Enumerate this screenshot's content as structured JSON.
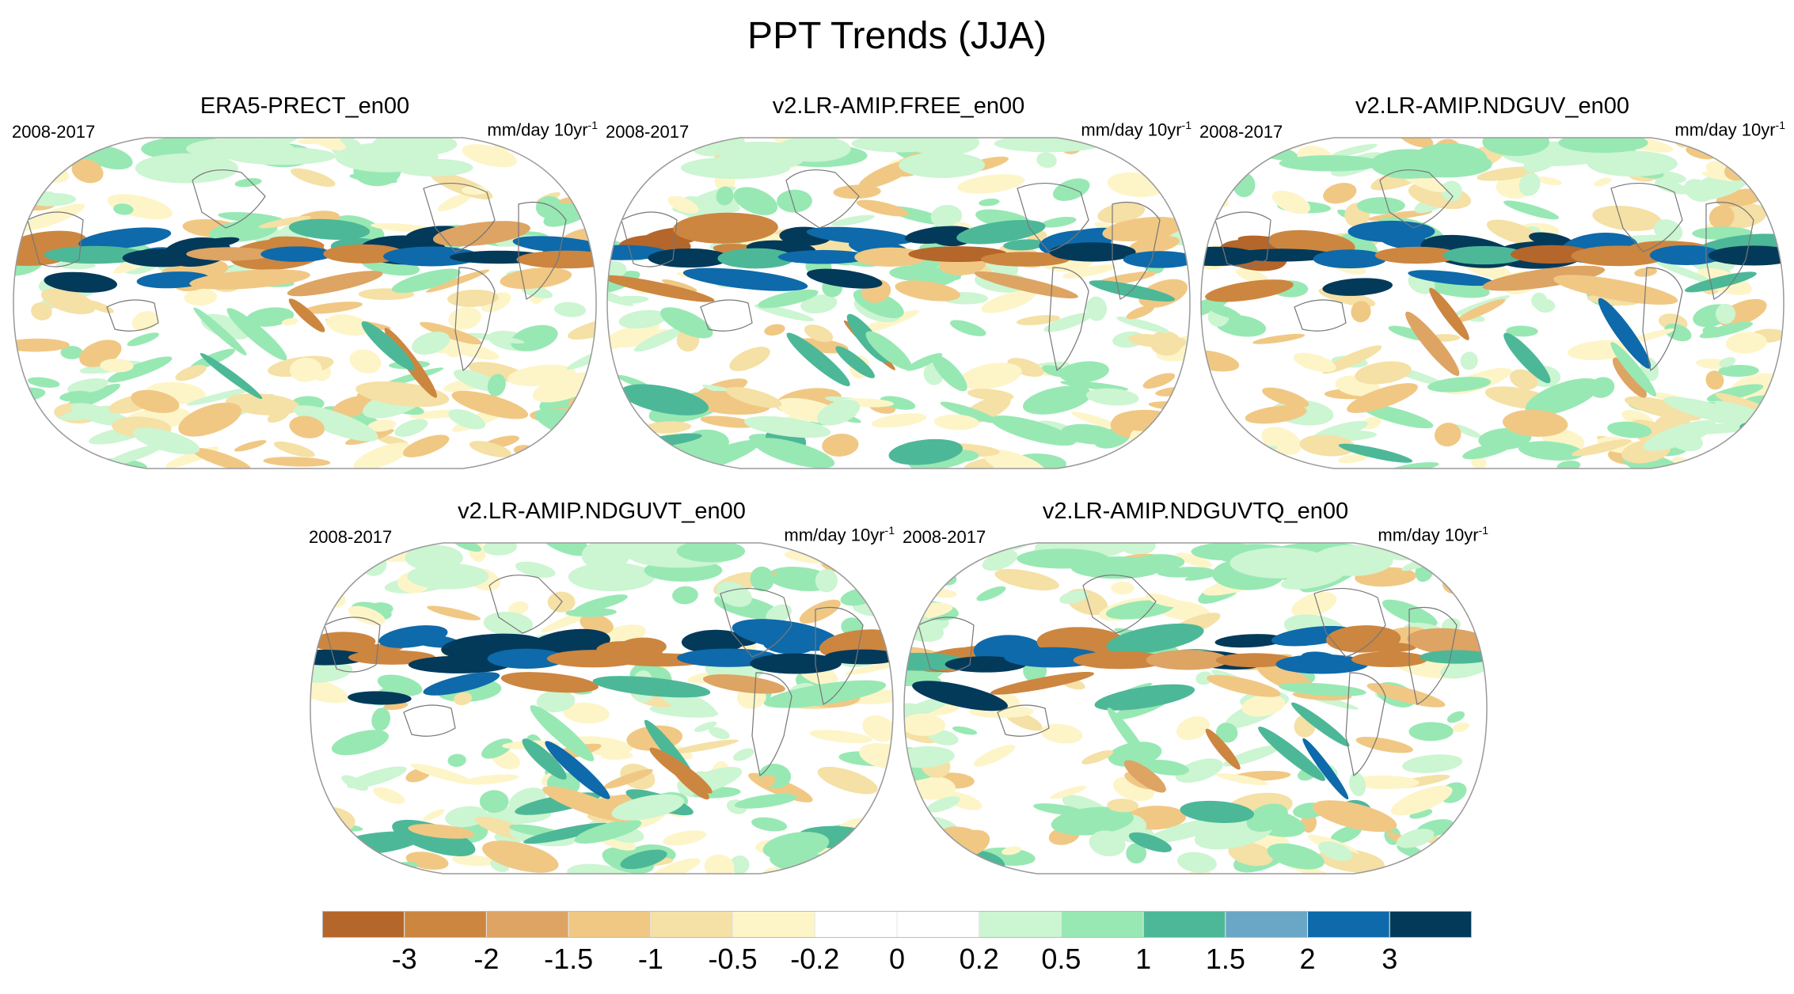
{
  "figure": {
    "title": "PPT Trends (JJA)"
  },
  "panels": [
    {
      "title": "ERA5-PRECT_en00",
      "period": "2008-2017",
      "units": "mm/day 10yr",
      "units_sup": "-1"
    },
    {
      "title": "v2.LR-AMIP.FREE_en00",
      "period": "2008-2017",
      "units": "mm/day 10yr",
      "units_sup": "-1"
    },
    {
      "title": "v2.LR-AMIP.NDGUV_en00",
      "period": "2008-2017",
      "units": "mm/day 10yr",
      "units_sup": "-1"
    },
    {
      "title": "v2.LR-AMIP.NDGUVT_en00",
      "period": "2008-2017",
      "units": "mm/day 10yr",
      "units_sup": "-1"
    },
    {
      "title": "v2.LR-AMIP.NDGUVTQ_en00",
      "period": "2008-2017",
      "units": "mm/day 10yr",
      "units_sup": "-1"
    }
  ],
  "colorbar": {
    "colors": [
      "#b5662a",
      "#cc8640",
      "#dda463",
      "#f0c884",
      "#f5e0a5",
      "#fdf5c8",
      "#ffffff",
      "#ffffff",
      "#ccf5d2",
      "#98e8b4",
      "#4db898",
      "#6aa6c6",
      "#0e6aaa",
      "#033a5a"
    ],
    "labels": [
      "-3",
      "-2",
      "-1.5",
      "-1",
      "-0.5",
      "-0.2",
      "0",
      "0.2",
      "0.5",
      "1",
      "1.5",
      "2",
      "3"
    ]
  }
}
